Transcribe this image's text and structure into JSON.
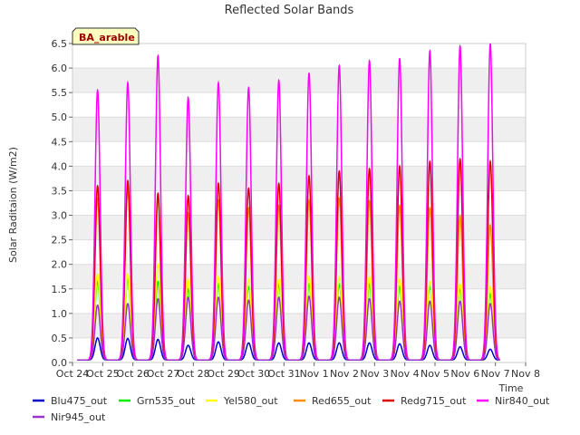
{
  "chart_data": {
    "type": "line",
    "title": "Reflected Solar Bands",
    "site_badge": "BA_arable",
    "xlabel": "Time",
    "ylabel": "Solar Raditaion (W/m2)",
    "ylim": [
      0,
      6.5
    ],
    "xlim": [
      0,
      15
    ],
    "yticks": [
      0.0,
      0.5,
      1.0,
      1.5,
      2.0,
      2.5,
      3.0,
      3.5,
      4.0,
      4.5,
      5.0,
      5.5,
      6.0,
      6.5
    ],
    "ytick_labels": [
      "0.0",
      "0.5",
      "1.0",
      "1.5",
      "2.0",
      "2.5",
      "3.0",
      "3.5",
      "4.0",
      "4.5",
      "5.0",
      "5.5",
      "6.0",
      "6.5"
    ],
    "xtick_labels": [
      "Oct 24",
      "Oct 25",
      "Oct 26",
      "Oct 27",
      "Oct 28",
      "Oct 29",
      "Oct 30",
      "Oct 31",
      "Nov 1",
      "Nov 2",
      "Nov 3",
      "Nov 4",
      "Nov 5",
      "Nov 6",
      "Nov 7",
      "Nov 8"
    ],
    "day_peak_offsets": [
      0.83,
      1.83,
      2.83,
      3.83,
      4.83,
      5.83,
      6.83,
      7.83,
      8.83,
      9.83,
      10.83,
      11.83,
      12.83,
      13.83
    ],
    "night_level": 0.05,
    "series": [
      {
        "name": "Blu475_out",
        "color": "#0000cc",
        "peaks": [
          0.45,
          0.44,
          0.42,
          0.3,
          0.37,
          0.35,
          0.35,
          0.35,
          0.35,
          0.35,
          0.33,
          0.3,
          0.27,
          0.22
        ]
      },
      {
        "name": "Grn535_out",
        "color": "#00ee00",
        "peaks": [
          1.6,
          1.65,
          1.6,
          1.45,
          1.55,
          1.5,
          1.55,
          1.55,
          1.55,
          1.55,
          1.5,
          1.5,
          1.45,
          1.35
        ]
      },
      {
        "name": "Yel580_out",
        "color": "#ffff00",
        "peaks": [
          1.75,
          1.75,
          1.95,
          1.65,
          1.7,
          1.65,
          1.65,
          1.7,
          1.7,
          1.7,
          1.65,
          1.6,
          1.55,
          1.5
        ]
      },
      {
        "name": "Red655_out",
        "color": "#ff8c00",
        "peaks": [
          3.3,
          3.5,
          3.3,
          3.0,
          3.25,
          3.1,
          3.15,
          3.25,
          3.3,
          3.25,
          3.15,
          3.1,
          2.95,
          2.75
        ]
      },
      {
        "name": "Redg715_out",
        "color": "#dd0000",
        "peaks": [
          3.55,
          3.65,
          3.4,
          3.35,
          3.6,
          3.5,
          3.6,
          3.75,
          3.85,
          3.9,
          3.95,
          4.05,
          4.1,
          4.05
        ]
      },
      {
        "name": "Nir840_out",
        "color": "#ff00ff",
        "peaks": [
          5.5,
          5.65,
          6.2,
          5.35,
          5.65,
          5.55,
          5.7,
          5.85,
          6.0,
          6.1,
          6.15,
          6.3,
          6.4,
          6.45
        ]
      },
      {
        "name": "Nir945_out",
        "color": "#9933cc",
        "peaks": [
          1.12,
          1.15,
          1.25,
          1.28,
          1.28,
          1.22,
          1.28,
          1.3,
          1.28,
          1.25,
          1.2,
          1.2,
          1.2,
          1.15
        ]
      }
    ]
  }
}
